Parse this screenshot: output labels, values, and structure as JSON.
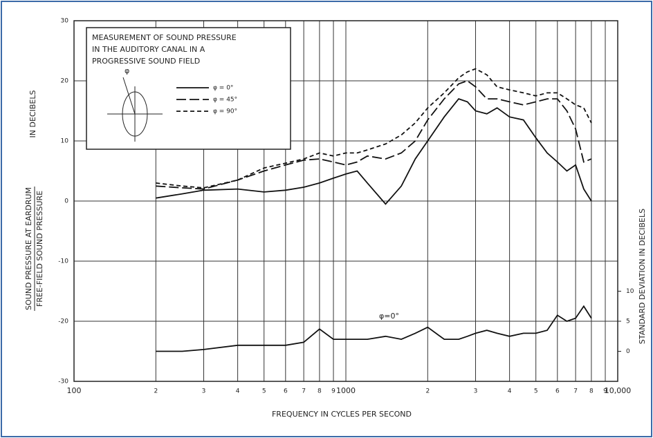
{
  "chart_data": {
    "type": "line",
    "title": [
      "MEASUREMENT OF SOUND PRESSURE",
      "IN THE AUDITORY CANAL IN A",
      "PROGRESSIVE SOUND FIELD"
    ],
    "xlabel": "FREQUENCY IN CYCLES PER SECOND",
    "ylabel": [
      "SOUND PRESSURE AT EARDRUM",
      "FREE-FIELD SOUND PRESSURE",
      "IN DECIBELS"
    ],
    "y2label": "STANDARD DEVIATION IN DECIBELS",
    "annotation": "φ=0°",
    "xscale": "log",
    "grid": true,
    "xlim": [
      100,
      10000
    ],
    "xticks": [
      100,
      {
        "value": 200,
        "label": "2"
      },
      {
        "value": 300,
        "label": "3"
      },
      {
        "value": 400,
        "label": "4"
      },
      {
        "value": 500,
        "label": "5"
      },
      {
        "value": 600,
        "label": "6"
      },
      {
        "value": 700,
        "label": "7"
      },
      {
        "value": 800,
        "label": "8"
      },
      {
        "value": 900,
        "label": "9"
      },
      1000,
      {
        "value": 2000,
        "label": "2"
      },
      {
        "value": 3000,
        "label": "3"
      },
      {
        "value": 4000,
        "label": "4"
      },
      {
        "value": 5000,
        "label": "5"
      },
      {
        "value": 6000,
        "label": "6"
      },
      {
        "value": 7000,
        "label": "7"
      },
      {
        "value": 8000,
        "label": "8"
      },
      {
        "value": 9000,
        "label": "9"
      },
      {
        "value": 10000,
        "label": "10,000"
      }
    ],
    "ylim": [
      -30,
      30
    ],
    "yticks": [
      -30,
      -20,
      -10,
      0,
      10,
      20,
      30
    ],
    "y2lim": [
      -5,
      55
    ],
    "y2ticks": [
      0,
      5,
      10
    ],
    "x": [
      200,
      250,
      300,
      400,
      500,
      600,
      700,
      800,
      900,
      1000,
      1100,
      1200,
      1400,
      1600,
      1800,
      2000,
      2300,
      2600,
      2800,
      3000,
      3300,
      3600,
      4000,
      4500,
      5000,
      5500,
      6000,
      6500,
      7000,
      7500,
      8000
    ],
    "series": [
      {
        "name": "φ = 0°",
        "color": "#111",
        "dash": "solid",
        "values": [
          0.5,
          1.2,
          1.8,
          2,
          1.5,
          1.8,
          2.3,
          3,
          3.8,
          4.5,
          5,
          3,
          -0.5,
          2.5,
          7,
          10,
          14,
          17,
          16.5,
          15,
          14.5,
          15.5,
          14,
          13.5,
          10.5,
          8,
          6.5,
          5,
          6,
          2,
          0
        ]
      },
      {
        "name": "φ = 45°",
        "color": "#111",
        "dash": "long",
        "values": [
          2.5,
          2.2,
          2,
          3.5,
          5,
          6,
          6.8,
          7,
          6.5,
          6,
          6.5,
          7.5,
          7,
          8,
          10,
          13.5,
          17,
          19.5,
          20,
          19,
          17,
          17,
          16.5,
          16,
          16.5,
          17,
          17,
          15,
          12,
          6.5,
          7
        ]
      },
      {
        "name": "φ = 90°",
        "color": "#111",
        "dash": "short",
        "values": [
          3,
          2.5,
          2.2,
          3.5,
          5.5,
          6.3,
          7,
          8,
          7.5,
          8,
          8,
          8.5,
          9.5,
          11,
          13,
          15.5,
          18,
          20.5,
          21.5,
          22,
          21,
          19,
          18.5,
          18,
          17.5,
          18,
          18,
          17,
          16,
          15.5,
          13
        ]
      },
      {
        "axis": "y2",
        "color": "#111",
        "dash": "solid",
        "values": [
          0,
          0,
          0.3,
          1,
          1,
          1,
          1.5,
          3.7,
          2,
          2,
          2,
          2,
          2.5,
          2,
          3,
          4,
          2,
          2,
          2.5,
          3,
          3.5,
          3,
          2.5,
          3,
          3,
          3.5,
          6,
          5,
          5.5,
          7.5,
          5.5
        ]
      }
    ]
  }
}
